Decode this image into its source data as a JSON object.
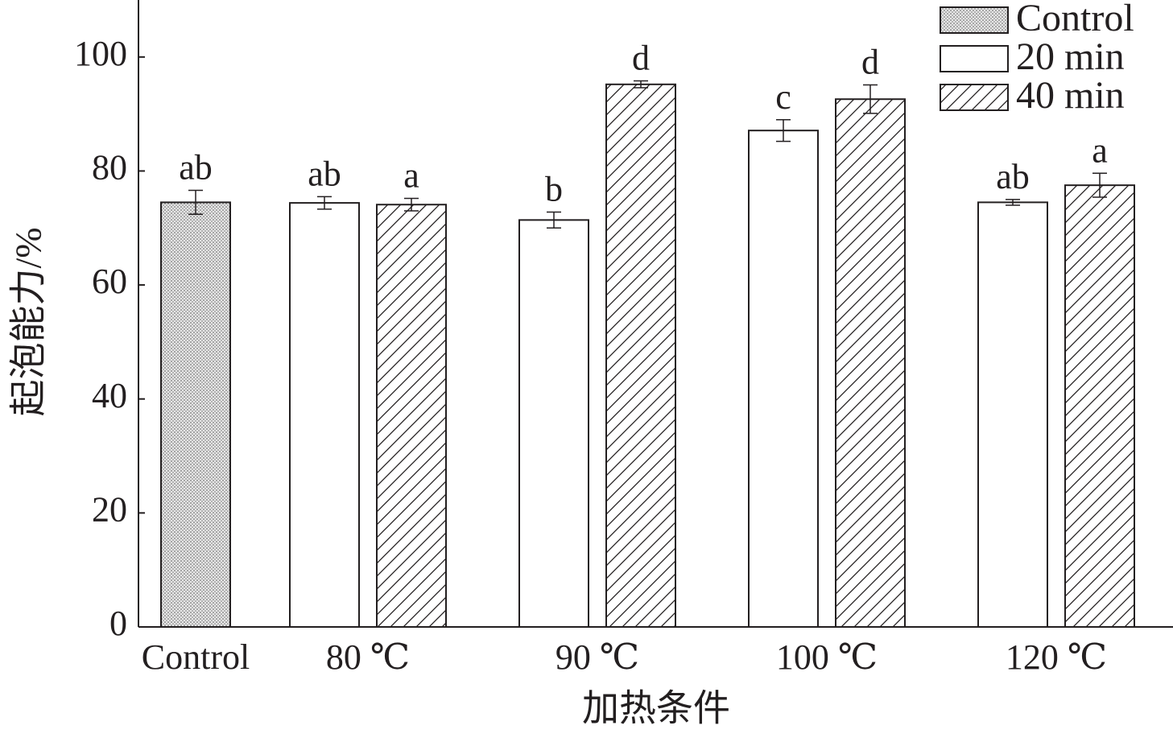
{
  "chart_data": {
    "type": "bar",
    "x_label": "加热条件",
    "y_label": "起泡能力/%",
    "categories": [
      "Control",
      "80 ℃",
      "90 ℃",
      "100 ℃",
      "120 ℃"
    ],
    "series": [
      {
        "name": "Control",
        "color": "#ffffff",
        "pattern": "dots",
        "values": [
          74.5,
          null,
          null,
          null,
          null
        ],
        "errors": [
          2.1,
          null,
          null,
          null,
          null
        ],
        "labels": [
          "ab",
          null,
          null,
          null,
          null
        ]
      },
      {
        "name": "20 min",
        "color": "#ffffff",
        "pattern": "none",
        "values": [
          null,
          74.4,
          71.4,
          87.1,
          74.5
        ],
        "errors": [
          null,
          1.1,
          1.4,
          1.9,
          0.5
        ],
        "labels": [
          null,
          "ab",
          "b",
          "c",
          "ab"
        ]
      },
      {
        "name": "40 min",
        "color": "#ffffff",
        "pattern": "hatch",
        "values": [
          null,
          74.1,
          95.2,
          92.6,
          77.5
        ],
        "errors": [
          null,
          1.1,
          0.6,
          2.5,
          2.1
        ],
        "labels": [
          null,
          "a",
          "d",
          "d",
          "a"
        ]
      }
    ],
    "ylim": [
      0,
      110
    ],
    "yticks": [
      0,
      20,
      40,
      60,
      80,
      100
    ],
    "legend": "top-right"
  }
}
